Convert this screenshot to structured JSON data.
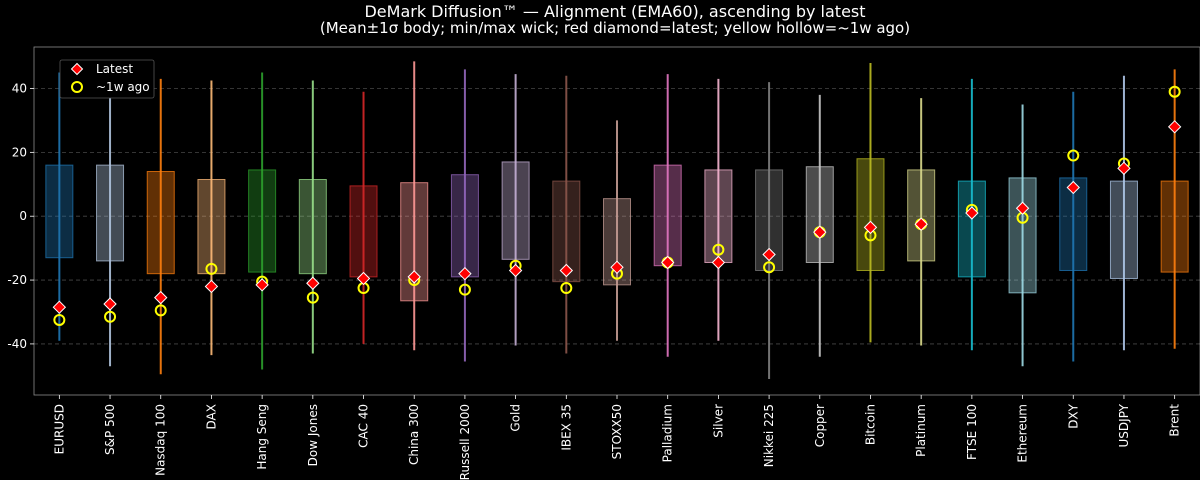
{
  "chart_data": {
    "type": "box",
    "title": "DeMark Diffusion™ — Alignment (EMA60), ascending by latest",
    "subtitle": "(Mean±1σ body; min/max wick; red diamond=latest; yellow hollow=~1w ago)",
    "xlabel": "",
    "ylabel": "",
    "ylim": [
      -56,
      53
    ],
    "yticks": [
      -40,
      -20,
      0,
      20,
      40
    ],
    "grid": "horizontal dashed",
    "legend": {
      "position": "top-left",
      "entries": [
        {
          "key": "latest",
          "label": "Latest",
          "color": "#ff0000",
          "marker": "diamond"
        },
        {
          "key": "week_ago",
          "label": "~1w ago",
          "color": "#ffff00",
          "marker": "hollow-circle"
        }
      ]
    },
    "categories": [
      "EURUSD",
      "S&P 500",
      "Nasdaq 100",
      "DAX",
      "Hang Seng",
      "Dow Jones",
      "CAC 40",
      "China 300",
      "Russell 2000",
      "Gold",
      "IBEX 35",
      "STOXX50",
      "Palladium",
      "Silver",
      "Nikkei 225",
      "Copper",
      "Bitcoin",
      "Platinum",
      "FTSE 100",
      "Ethereum",
      "DXY",
      "USDJPY",
      "Brent"
    ],
    "colors": [
      "#1f77b4",
      "#b0c4de",
      "#ff7f0e",
      "#ffbb78",
      "#2ca02c",
      "#98df8a",
      "#d62728",
      "#ff9896",
      "#9467bd",
      "#c5b0d5",
      "#8c564b",
      "#c49c94",
      "#e377c2",
      "#f7b6d2",
      "#7f7f7f",
      "#c7c7c7",
      "#bcbd22",
      "#dbdb8d",
      "#17becf",
      "#9edae5",
      "#1f77b4",
      "#aec7e8",
      "#ff7f0e"
    ],
    "mean_minus_std": [
      -13,
      -14,
      -18,
      -18,
      -17.5,
      -18,
      -19,
      -26.5,
      -19,
      -13.5,
      -20.5,
      -21.5,
      -15.5,
      -14.5,
      -17,
      -14.5,
      -17,
      -14,
      -19,
      -24,
      -17,
      -19.5,
      -17.5
    ],
    "mean_plus_std": [
      16,
      16,
      14,
      11.5,
      14.5,
      11.5,
      9.5,
      10.5,
      13,
      17,
      11,
      5.5,
      16,
      14.5,
      14.5,
      15.5,
      18,
      14.5,
      11,
      12,
      12,
      11,
      11
    ],
    "min": [
      -39,
      -47,
      -49.5,
      -43.5,
      -48,
      -43,
      -40,
      -42,
      -45.5,
      -40.5,
      -43,
      -39,
      -44,
      -39,
      -51,
      -44,
      -39.5,
      -40.5,
      -42,
      -47,
      -45.5,
      -42,
      -41.5
    ],
    "max": [
      45,
      41,
      43,
      42.5,
      45,
      42.5,
      39,
      48.5,
      46,
      44.5,
      44,
      30,
      44.5,
      43,
      42,
      38,
      48,
      37,
      43,
      35,
      39,
      44,
      46
    ],
    "latest": [
      -28.5,
      -27.5,
      -25.5,
      -22,
      -21.5,
      -21,
      -19.5,
      -19,
      -18,
      -17,
      -17,
      -16,
      -14.5,
      -14.5,
      -12,
      -5,
      -3.5,
      -2.5,
      1,
      2.5,
      9,
      15,
      28
    ],
    "week_ago": [
      -32.5,
      -31.5,
      -29.5,
      -16.5,
      -20.5,
      -25.5,
      -22.5,
      -20,
      -23,
      -15.5,
      -22.5,
      -18,
      -14.5,
      -10.5,
      -16,
      -5,
      -6,
      -2.5,
      2,
      -0.5,
      19,
      16.5,
      39
    ]
  }
}
